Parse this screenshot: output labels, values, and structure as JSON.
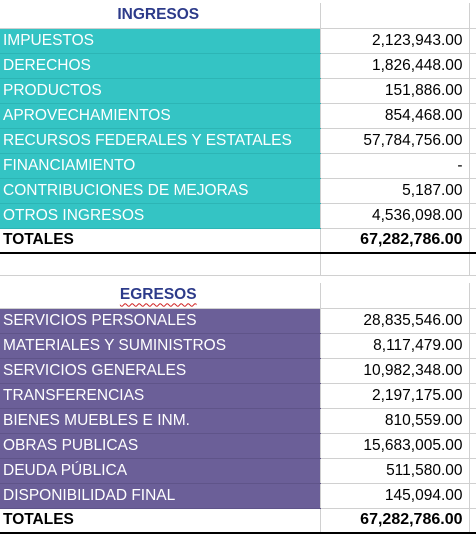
{
  "ingresos": {
    "title": "INGRESOS",
    "rows": [
      {
        "label": "IMPUESTOS",
        "value": "2,123,943.00"
      },
      {
        "label": "DERECHOS",
        "value": "1,826,448.00"
      },
      {
        "label": "PRODUCTOS",
        "value": "151,886.00"
      },
      {
        "label": "APROVECHAMIENTOS",
        "value": "854,468.00"
      },
      {
        "label": "RECURSOS FEDERALES Y ESTATALES",
        "value": "57,784,756.00"
      },
      {
        "label": "FINANCIAMIENTO",
        "value": "-"
      },
      {
        "label": "CONTRIBUCIONES DE MEJORAS",
        "value": "5,187.00"
      },
      {
        "label": "OTROS INGRESOS",
        "value": "4,536,098.00"
      }
    ],
    "total_label": "TOTALES",
    "total_value": "67,282,786.00",
    "color": "#34c4c4"
  },
  "egresos": {
    "title": "EGRESOS",
    "rows": [
      {
        "label": "SERVICIOS PERSONALES",
        "value": "28,835,546.00"
      },
      {
        "label": "MATERIALES Y SUMINISTROS",
        "value": "8,117,479.00"
      },
      {
        "label": "SERVICIOS GENERALES",
        "value": "10,982,348.00"
      },
      {
        "label": "TRANSFERENCIAS",
        "value": "2,197,175.00"
      },
      {
        "label": "BIENES MUEBLES E INM.",
        "value": "810,559.00"
      },
      {
        "label": "OBRAS PUBLICAS",
        "value": "15,683,005.00"
      },
      {
        "label": "DEUDA PÚBLICA",
        "value": "511,580.00"
      },
      {
        "label": "DISPONIBILIDAD FINAL",
        "value": "145,094.00"
      }
    ],
    "total_label": "TOTALES",
    "total_value": "67,282,786.00",
    "color": "#6b5f98"
  }
}
